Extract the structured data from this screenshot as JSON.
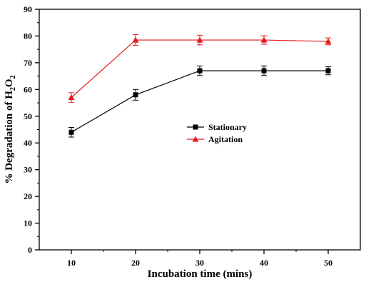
{
  "chart_data": {
    "type": "line",
    "title": "",
    "xlabel": "Incubation time (mins)",
    "ylabel": "% Degradation of H",
    "ylabel_subscript_after_H": "2",
    "ylabel_suffix": "O",
    "ylabel_subscript_after_O": "2",
    "x": [
      10,
      20,
      30,
      40,
      50
    ],
    "xticks": [
      "10",
      "20",
      "30",
      "40",
      "50"
    ],
    "yticks": [
      "0",
      "10",
      "20",
      "30",
      "40",
      "50",
      "60",
      "70",
      "80",
      "90"
    ],
    "xlim": [
      5,
      55
    ],
    "ylim": [
      0,
      90
    ],
    "grid": false,
    "legend_position": "center-right",
    "series": [
      {
        "name": "Stationary",
        "values": [
          44,
          58,
          67,
          67,
          67
        ],
        "errors": [
          1.8,
          2.0,
          1.8,
          1.8,
          1.5
        ],
        "color": "#000000",
        "marker": "square"
      },
      {
        "name": "Agitation",
        "values": [
          57,
          78.5,
          78.5,
          78.5,
          78
        ],
        "errors": [
          1.8,
          2.0,
          1.8,
          1.6,
          1.3
        ],
        "color": "#e8171c",
        "marker": "triangle"
      }
    ]
  }
}
